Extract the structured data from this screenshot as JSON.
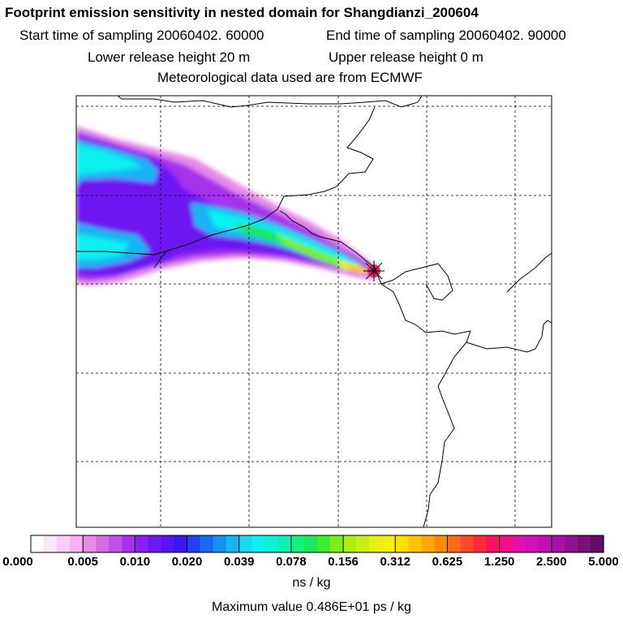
{
  "header": {
    "title": "Footprint emission sensitivity in nested domain for Shangdianzi_200604",
    "start_label": "Start time of sampling 20060402. 60000",
    "end_label": "End time of sampling 20060402. 90000",
    "lower_label": "Lower release height   20 m",
    "upper_label": "Upper release height    0 m",
    "met_label": "Meteorological data used are from ECMWF"
  },
  "legend": {
    "ticks": [
      "0.000",
      "0.005",
      "0.010",
      "0.020",
      "0.039",
      "0.078",
      "0.156",
      "0.312",
      "0.625",
      "1.250",
      "2.500",
      "5.000"
    ],
    "units": "ns / kg",
    "max_value": "Maximum value  0.486E+01 ps / kg",
    "colors": [
      "#ffffff",
      "#fde6fd",
      "#fbccfb",
      "#f6b0f6",
      "#e68ae8",
      "#d46ee0",
      "#c050e6",
      "#a630ee",
      "#8a20f0",
      "#6e18f2",
      "#5515f0",
      "#3a16ee",
      "#2240ee",
      "#1a68f0",
      "#1890f2",
      "#18b4f2",
      "#18d8f4",
      "#10f0f0",
      "#10f0d2",
      "#10f0b0",
      "#10f080",
      "#18e860",
      "#40ec30",
      "#78f018",
      "#a8f018",
      "#c8f018",
      "#e4f018",
      "#f4ee10",
      "#ffe000",
      "#ffc400",
      "#ffa800",
      "#ff8c00",
      "#ff6a18",
      "#ff4828",
      "#ff2840",
      "#ff1060",
      "#f0108a",
      "#e010a8",
      "#d010b8",
      "#c010b4",
      "#a810a4",
      "#90108e",
      "#781078",
      "#600e60"
    ]
  }
}
